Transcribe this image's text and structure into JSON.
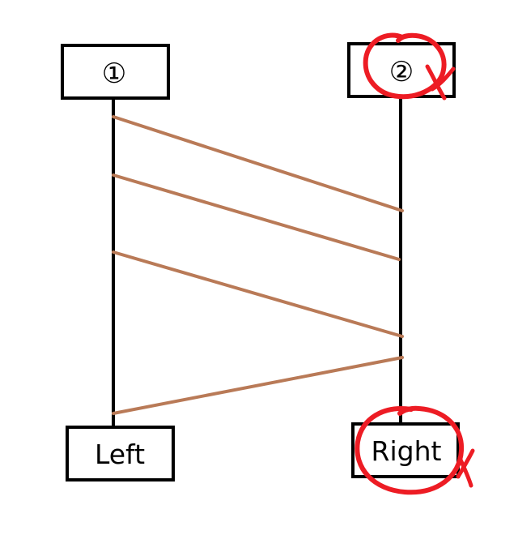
{
  "diagram": {
    "top_left_label": "①",
    "top_right_label": "②",
    "bottom_left_label": "Left",
    "bottom_right_label": "Right"
  },
  "colors": {
    "box_border": "#000000",
    "lifeline": "#000000",
    "connector": "#b97a57",
    "annotation": "#ed1c24",
    "background": "#ffffff"
  }
}
